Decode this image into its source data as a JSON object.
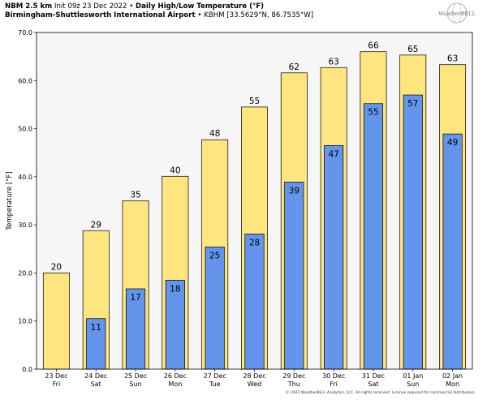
{
  "header": {
    "line1_bold": "NBM 2.5 km",
    "line1_init": "Init 09z 23 Dec 2022",
    "line1_sep": "•",
    "line1_title": "Daily High/Low Temperature (°F)",
    "line2_bold": "Birmingham-Shuttlesworth International Airport",
    "line2_sep": "•",
    "line2_station": "KBHM [33.5629°N, 86.7535°W]"
  },
  "logo": {
    "text": "WeatherBELL",
    "icon": "globe-logo-icon"
  },
  "footer": "© 2022 WeatherBELL Analytics, LLC. All rights reserved. License required for commercial distribution.",
  "colors": {
    "high": "#fee57f",
    "low": "#6495ed",
    "plot_bg": "#f6f6f6",
    "edge": "#000000"
  },
  "chart_data": {
    "type": "bar",
    "ylabel": "Temperature [°F]",
    "ylim": [
      0,
      70
    ],
    "yticks": [
      "0.0",
      "10.0",
      "20.0",
      "30.0",
      "40.0",
      "50.0",
      "60.0",
      "70.0"
    ],
    "grid": false,
    "categories": [
      {
        "date": "23 Dec",
        "day": "Fri"
      },
      {
        "date": "24 Dec",
        "day": "Sat"
      },
      {
        "date": "25 Dec",
        "day": "Sun"
      },
      {
        "date": "26 Dec",
        "day": "Mon"
      },
      {
        "date": "27 Dec",
        "day": "Tue"
      },
      {
        "date": "28 Dec",
        "day": "Wed"
      },
      {
        "date": "29 Dec",
        "day": "Thu"
      },
      {
        "date": "30 Dec",
        "day": "Fri"
      },
      {
        "date": "31 Dec",
        "day": "Sat"
      },
      {
        "date": "01 Jan",
        "day": "Sun"
      },
      {
        "date": "02 Jan",
        "day": "Mon"
      }
    ],
    "series": [
      {
        "values": [
          20.0,
          28.8,
          35.0,
          40.1,
          47.7,
          54.5,
          61.6,
          62.7,
          66.0,
          65.3,
          63.3
        ],
        "labels": [
          "20",
          "29",
          "35",
          "40",
          "48",
          "55",
          "62",
          "63",
          "66",
          "65",
          "63"
        ]
      },
      {
        "values": [
          null,
          10.5,
          16.7,
          18.5,
          25.4,
          28.1,
          38.9,
          46.5,
          55.2,
          57.0,
          48.9
        ],
        "labels": [
          "",
          "11",
          "17",
          "18",
          "25",
          "28",
          "39",
          "47",
          "55",
          "57",
          "49"
        ]
      }
    ]
  }
}
